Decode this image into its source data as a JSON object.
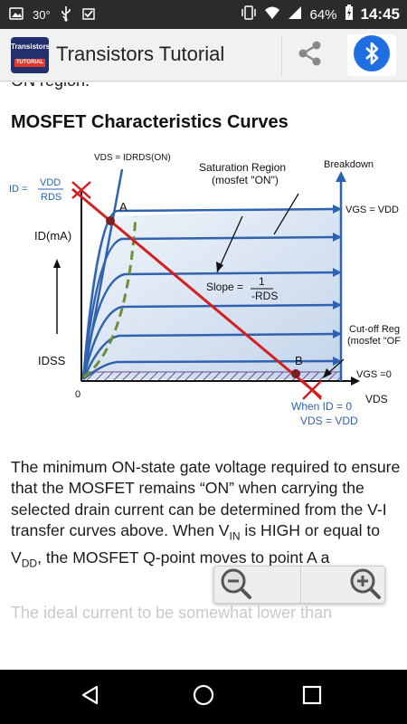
{
  "status_bar": {
    "temperature": "30°",
    "battery": "64%",
    "time": "14:45"
  },
  "app_bar": {
    "logo_text_top": "Transistors",
    "logo_text_bottom": "TUTORIAL",
    "title": "Transistors Tutorial"
  },
  "article": {
    "cut_top_text": "ON region.",
    "heading": "MOSFET Characteristics Curves",
    "diagram": {
      "vds_line_label": "VDS = IDRDS(ON)",
      "id_eq_label": "ID =",
      "vdd_label": "VDD",
      "rds_label": "RDS",
      "point_a": "A",
      "point_b": "B",
      "saturation_label": "Saturation Region",
      "saturation_sub": "(mosfet \"ON\")",
      "breakdown_label": "Breakdown",
      "vgs_vdd": "VGS = VDD",
      "id_ma": "ID(mA)",
      "slope_label": "Slope =",
      "slope_num": "1",
      "slope_den": "-RDS",
      "cutoff_label": "Cut-off Reg",
      "cutoff_sub": "(mosfet \"OF",
      "idss_label": "IDSS",
      "vgs_zero": "VGS =0",
      "zero_label": "0",
      "vds_axis": "VDS",
      "when_id": "When ID = 0",
      "vds_vdd": "VDS = VDD"
    },
    "paragraph_parts": [
      "The minimum ON-state gate voltage required to ensure that the MOSFET remains “ON” when carrying the selected drain current can be determined from the V-I transfer curves above. When V",
      "IN",
      " is HIGH or equal to V",
      "DD",
      ", the MOSFET Q-point moves to point A a"
    ],
    "cut_bottom_text": "The ideal current to be somewhat lower than"
  }
}
